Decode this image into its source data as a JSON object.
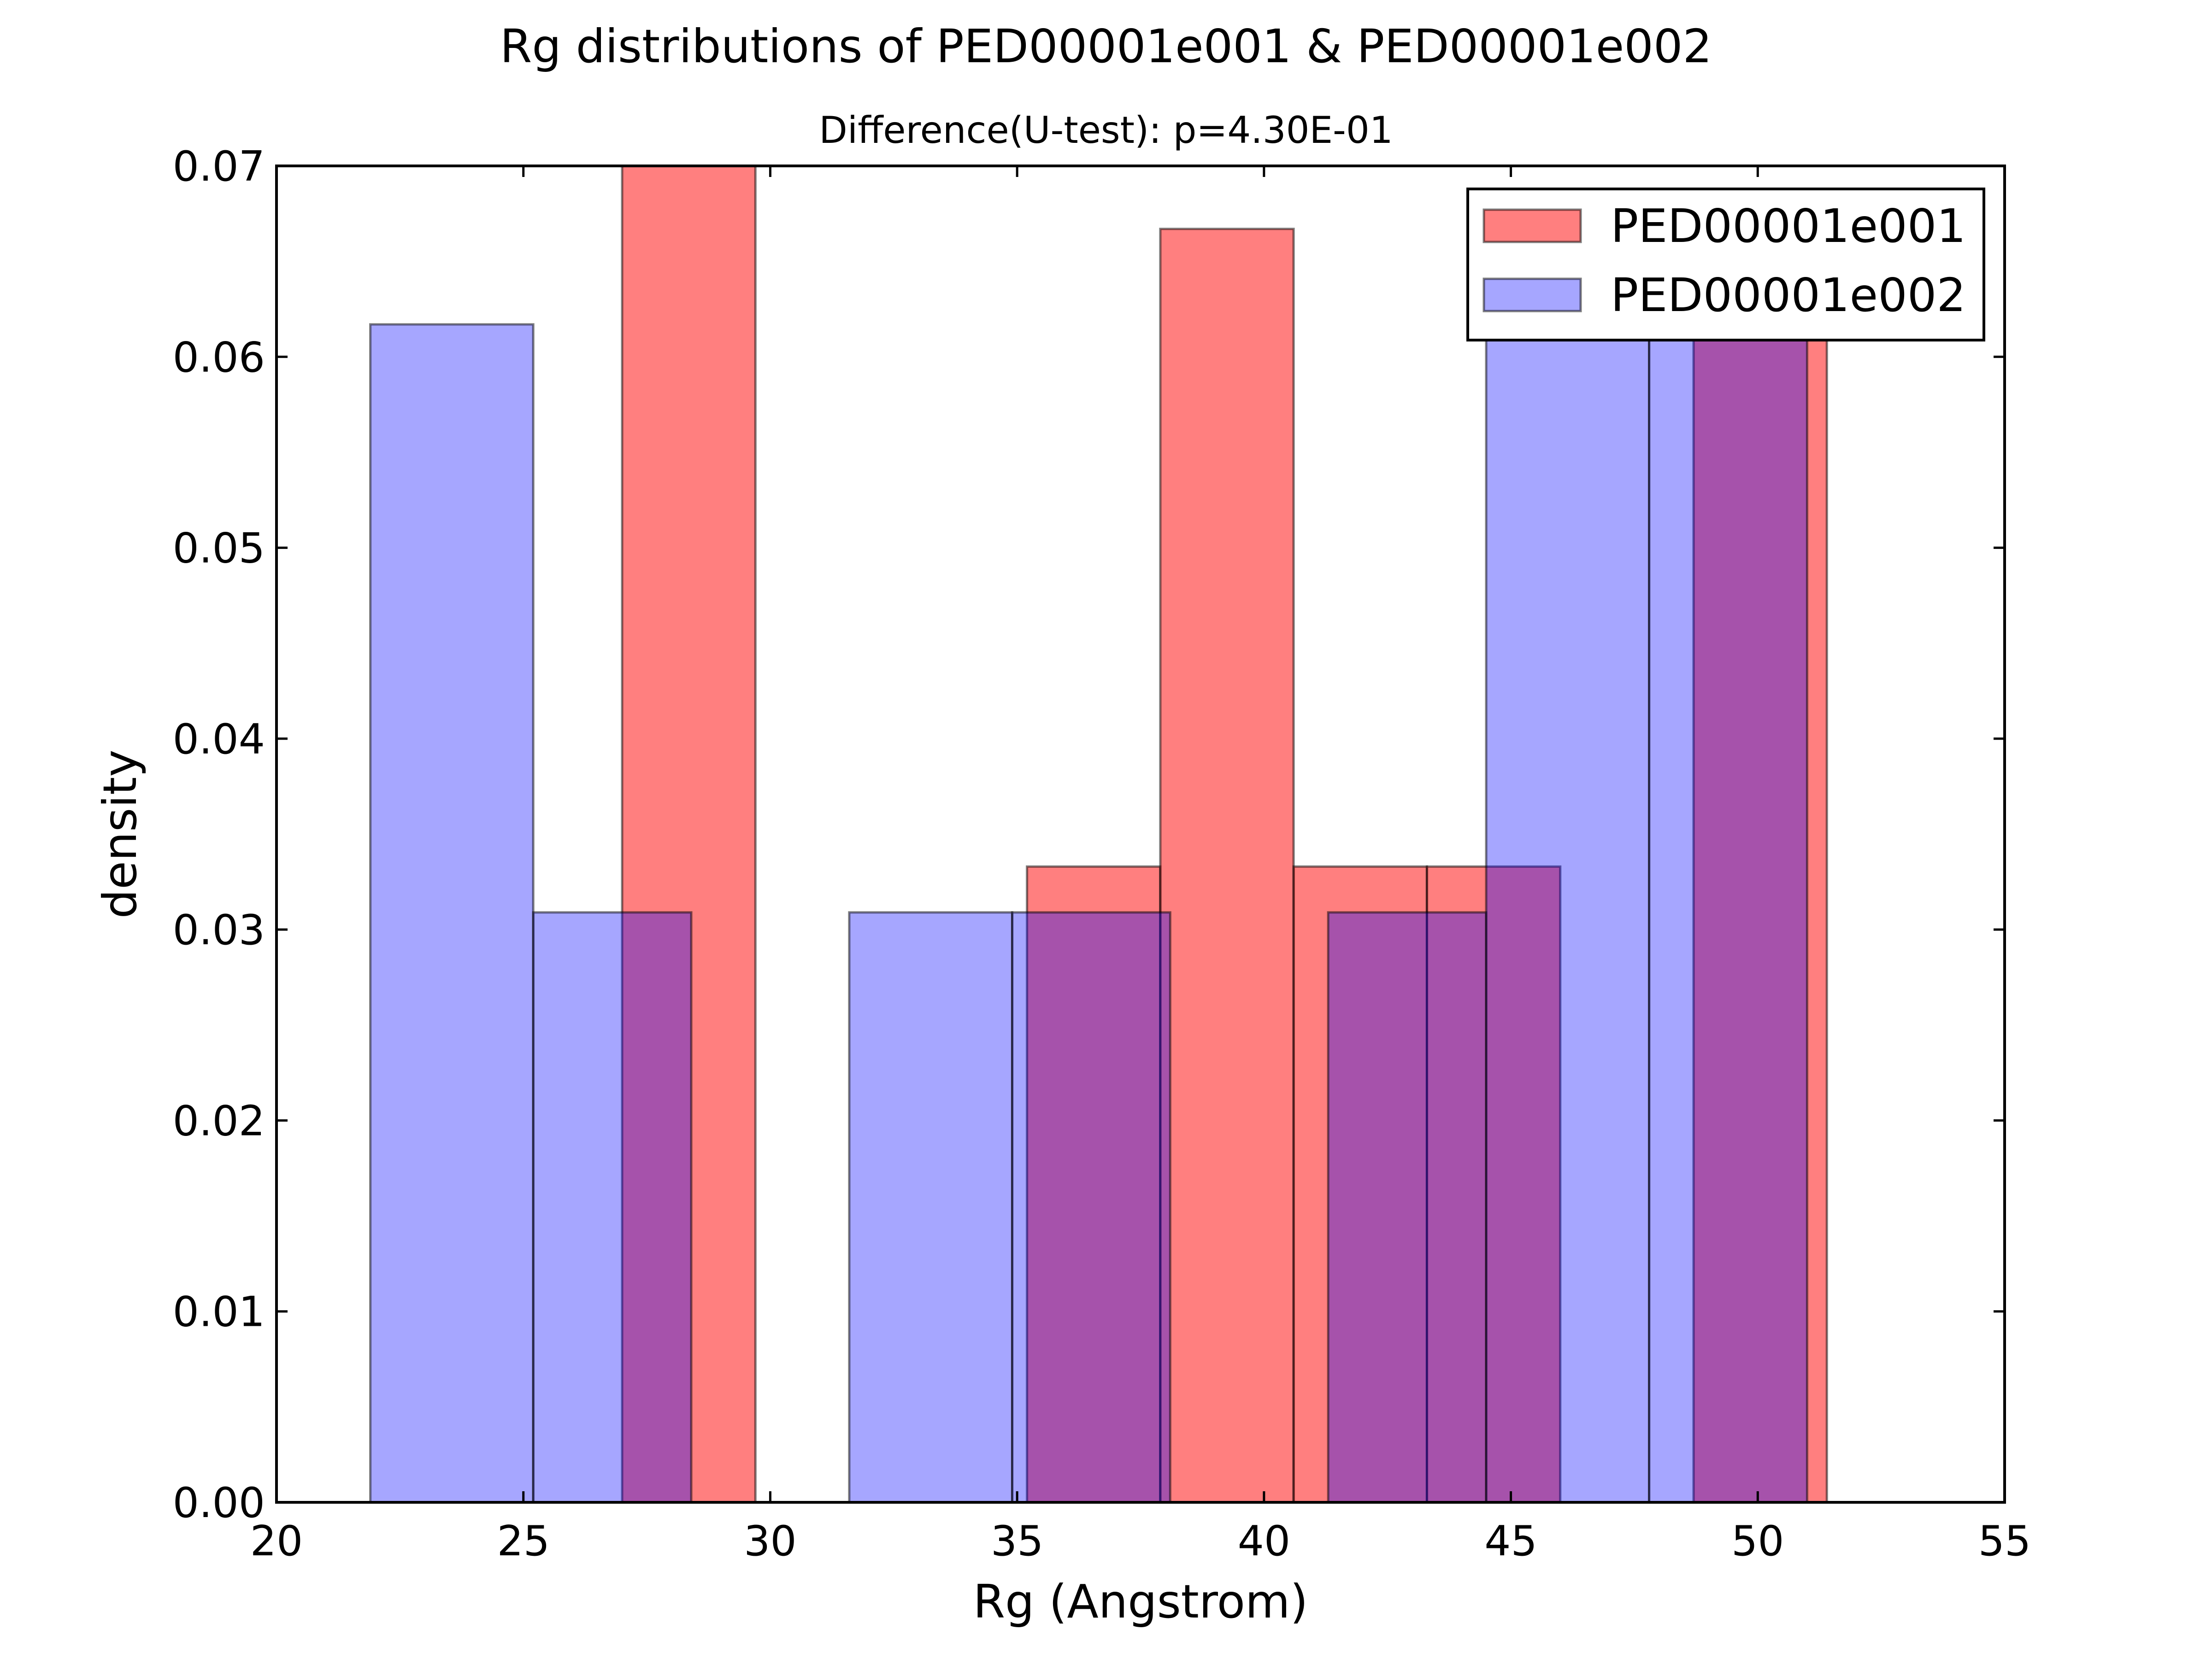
{
  "chart_data": {
    "type": "bar",
    "title": "Rg distributions of PED00001e001 & PED00001e002",
    "subtitle": "Difference(U-test):  p=4.30E-01",
    "xlabel": "Rg (Angstrom)",
    "ylabel": "density",
    "xlim": [
      20,
      55
    ],
    "ylim": [
      0,
      0.07
    ],
    "x_ticks": [
      "20",
      "25",
      "30",
      "35",
      "40",
      "45",
      "50",
      "55"
    ],
    "y_ticks": [
      "0.00",
      "0.01",
      "0.02",
      "0.03",
      "0.04",
      "0.05",
      "0.06",
      "0.07"
    ],
    "grid": false,
    "legend_position": "top-right",
    "series": [
      {
        "name": "PED00001e001",
        "color": "#ff0000",
        "opacity": 0.5,
        "bin_edges": [
          27.0,
          29.7,
          32.4,
          35.2,
          37.9,
          40.6,
          43.3,
          46.0,
          48.7,
          51.4
        ],
        "values": [
          0.07,
          0.0,
          0.0,
          0.0333,
          0.0667,
          0.0333,
          0.0333,
          0.0,
          0.0667
        ]
      },
      {
        "name": "PED00001e002",
        "color": "#0000ff",
        "opacity": 0.35,
        "bin_edges": [
          21.9,
          25.2,
          28.4,
          31.6,
          34.9,
          38.1,
          41.3,
          44.5,
          47.8,
          51.0
        ],
        "values": [
          0.0617,
          0.0309,
          0.0,
          0.0309,
          0.0309,
          0.0,
          0.0309,
          0.0617,
          0.0617
        ]
      }
    ]
  }
}
